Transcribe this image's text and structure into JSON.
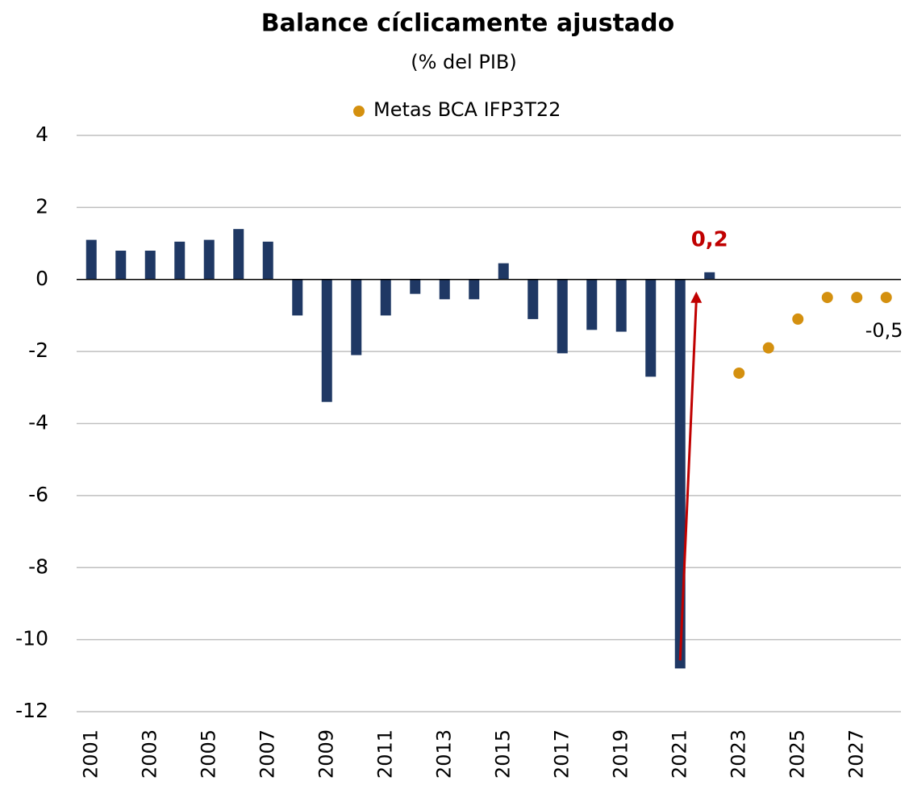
{
  "chart_data": {
    "type": "bar",
    "title": "Balance cíclicamente ajustado",
    "subtitle": "(% del PIB)",
    "categories": [
      "2001",
      null,
      "2003",
      null,
      "2005",
      null,
      "2007",
      null,
      "2009",
      null,
      "2011",
      null,
      "2013",
      null,
      "2015",
      null,
      "2017",
      null,
      "2019",
      null,
      "2021",
      null,
      "2023",
      null,
      "2025",
      null,
      "2027",
      null
    ],
    "series": [
      {
        "type": "bar",
        "color": "#1f3864",
        "values": [
          1.1,
          0.8,
          0.8,
          1.05,
          1.1,
          1.4,
          1.05,
          -1.0,
          -3.4,
          -2.1,
          -1.0,
          -0.4,
          -0.55,
          -0.55,
          0.45,
          -1.1,
          -2.05,
          -1.4,
          -1.45,
          -2.7,
          -10.8,
          0.2,
          null,
          null,
          null,
          null,
          null,
          null
        ],
        "value_labels": [
          null,
          null,
          null,
          null,
          null,
          null,
          null,
          null,
          null,
          null,
          null,
          null,
          null,
          null,
          null,
          null,
          null,
          null,
          null,
          null,
          null,
          "0,2",
          null,
          null,
          null,
          null,
          null,
          null
        ]
      },
      {
        "type": "scatter",
        "name": "Metas BCA IFP3T22",
        "color": "#d4900f",
        "values": [
          null,
          null,
          null,
          null,
          null,
          null,
          null,
          null,
          null,
          null,
          null,
          null,
          null,
          null,
          null,
          null,
          null,
          null,
          null,
          null,
          null,
          null,
          -2.6,
          -1.9,
          -1.1,
          -0.5,
          -0.5,
          -0.5
        ],
        "value_labels": [
          null,
          null,
          null,
          null,
          null,
          null,
          null,
          null,
          null,
          null,
          null,
          null,
          null,
          null,
          null,
          null,
          null,
          null,
          null,
          null,
          null,
          null,
          null,
          null,
          null,
          null,
          null,
          "-0,5"
        ]
      }
    ],
    "ylim": [
      -12,
      4
    ],
    "yticks": [
      -12,
      -10,
      -8,
      -6,
      -4,
      -2,
      0,
      2,
      4
    ],
    "grid": true,
    "legend": "top"
  }
}
